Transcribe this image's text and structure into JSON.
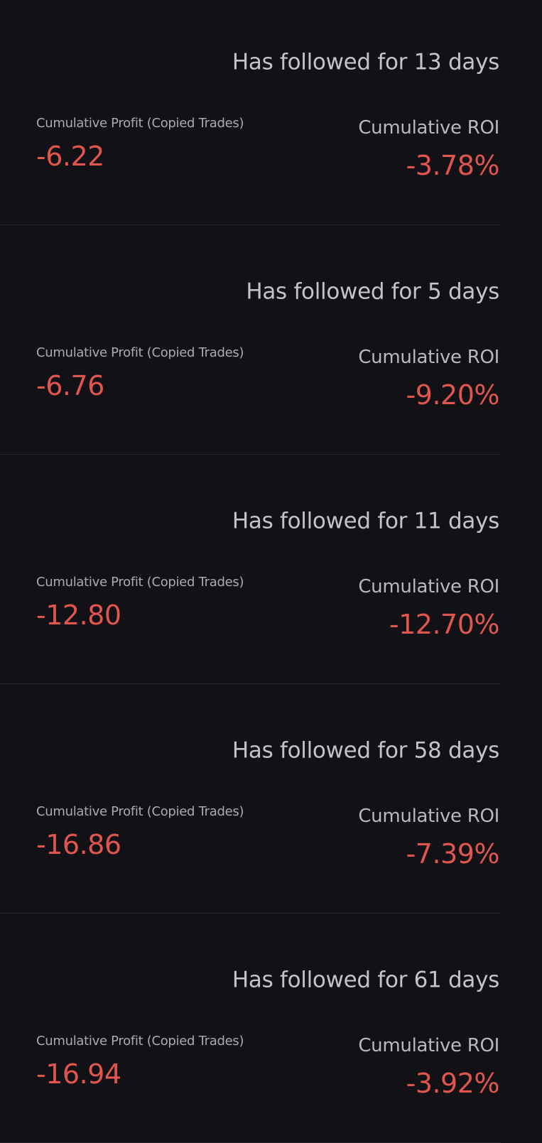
{
  "colors": {
    "background": "#111116",
    "negative": "#e0564f",
    "text_secondary": "#b7b9bf"
  },
  "labels": {
    "profit": "Cumulative Profit (Copied Trades)",
    "roi": "Cumulative ROI"
  },
  "items": [
    {
      "followed": "Has followed for 13 days",
      "profit": "-6.22",
      "roi": "-3.78%"
    },
    {
      "followed": "Has followed for 5 days",
      "profit": "-6.76",
      "roi": "-9.20%"
    },
    {
      "followed": "Has followed for 11 days",
      "profit": "-12.80",
      "roi": "-12.70%"
    },
    {
      "followed": "Has followed for 58 days",
      "profit": "-16.86",
      "roi": "-7.39%"
    },
    {
      "followed": "Has followed for 61 days",
      "profit": "-16.94",
      "roi": "-3.92%"
    }
  ]
}
